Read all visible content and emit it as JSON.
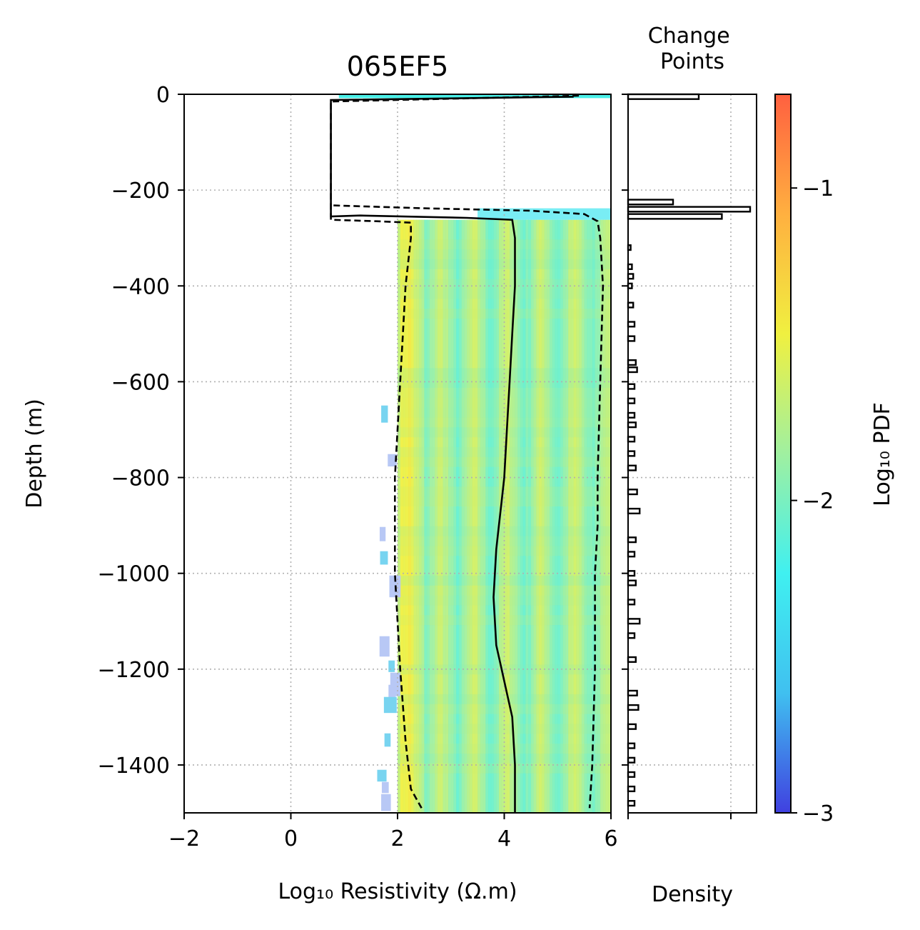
{
  "chart_data": [
    {
      "type": "heatmap",
      "title": "065EF5",
      "xlabel": "Log₁₀ Resistivity (Ω.m)",
      "ylabel": "Depth (m)",
      "xlim": [
        -2,
        6
      ],
      "ylim": [
        -1500,
        0
      ],
      "xticks": [
        "−2",
        "0",
        "2",
        "4",
        "6"
      ],
      "yticks": [
        "0",
        "−200",
        "−400",
        "−600",
        "−800",
        "−1000",
        "−1200",
        "−1400"
      ],
      "ytick_values": [
        0,
        -200,
        -400,
        -600,
        -800,
        -1000,
        -1200,
        -1400
      ],
      "xtick_values": [
        -2,
        0,
        2,
        4,
        6
      ],
      "grid": true,
      "series": [
        {
          "style": "solid",
          "x": [
            5.3,
            0.75,
            0.75,
            1.3,
            2.5,
            3.3,
            4.15,
            4.2,
            4.2,
            4.15,
            4.1,
            4.05,
            4.0,
            3.95,
            3.9,
            3.85,
            3.8,
            3.85,
            3.95,
            4.05,
            4.15,
            4.2,
            4.2
          ],
          "y": [
            -5,
            -12,
            -255,
            -253,
            -256,
            -258,
            -262,
            -300,
            -400,
            -500,
            -600,
            -700,
            -800,
            -850,
            -900,
            -950,
            -1050,
            -1150,
            -1200,
            -1250,
            -1300,
            -1400,
            -1500
          ]
        },
        {
          "style": "dashed",
          "x": [
            5.4,
            0.75,
            0.75,
            0.75,
            1.6,
            2.25,
            2.25,
            2.15,
            2.1,
            2.05,
            2.0,
            1.95,
            1.95,
            2.05,
            2.15,
            2.25,
            2.45
          ],
          "y": [
            -3,
            -15,
            -255,
            -262,
            -265,
            -268,
            -300,
            -400,
            -500,
            -600,
            -700,
            -800,
            -1000,
            -1200,
            -1350,
            -1450,
            -1490
          ]
        },
        {
          "style": "dashed",
          "x": [
            0.8,
            2.5,
            4.5,
            5.5,
            5.75,
            5.8,
            5.85,
            5.8,
            5.75,
            5.75,
            5.7,
            5.7,
            5.65,
            5.6
          ],
          "y": [
            -232,
            -238,
            -243,
            -250,
            -265,
            -300,
            -400,
            -600,
            -800,
            -900,
            -1000,
            -1200,
            -1400,
            -1490
          ]
        }
      ],
      "heatmap_band": {
        "x_range": [
          2.0,
          6.0
        ],
        "y_range": [
          -262,
          -1500
        ],
        "top_strip_y": [
          0,
          -8
        ],
        "transition_y": [
          -238,
          -262
        ]
      }
    },
    {
      "type": "bar",
      "orientation": "horizontal",
      "title": "Change Points",
      "xlabel": "Density",
      "ylim": [
        -1500,
        0
      ],
      "xlim": [
        0,
        100
      ],
      "bin_width": 10,
      "bins": [
        {
          "depth": -5,
          "value": 55
        },
        {
          "depth": -225,
          "value": 35
        },
        {
          "depth": -240,
          "value": 95
        },
        {
          "depth": -255,
          "value": 73
        },
        {
          "depth": -320,
          "value": 2
        },
        {
          "depth": -360,
          "value": 3
        },
        {
          "depth": -380,
          "value": 4
        },
        {
          "depth": -400,
          "value": 3
        },
        {
          "depth": -440,
          "value": 4
        },
        {
          "depth": -480,
          "value": 5
        },
        {
          "depth": -510,
          "value": 5
        },
        {
          "depth": -560,
          "value": 6
        },
        {
          "depth": -575,
          "value": 7
        },
        {
          "depth": -610,
          "value": 5
        },
        {
          "depth": -640,
          "value": 5
        },
        {
          "depth": -670,
          "value": 5
        },
        {
          "depth": -690,
          "value": 6
        },
        {
          "depth": -720,
          "value": 5
        },
        {
          "depth": -750,
          "value": 5
        },
        {
          "depth": -780,
          "value": 6
        },
        {
          "depth": -830,
          "value": 7
        },
        {
          "depth": -870,
          "value": 9
        },
        {
          "depth": -930,
          "value": 6
        },
        {
          "depth": -960,
          "value": 5
        },
        {
          "depth": -1000,
          "value": 5
        },
        {
          "depth": -1020,
          "value": 6
        },
        {
          "depth": -1060,
          "value": 5
        },
        {
          "depth": -1100,
          "value": 9
        },
        {
          "depth": -1130,
          "value": 5
        },
        {
          "depth": -1180,
          "value": 6
        },
        {
          "depth": -1250,
          "value": 7
        },
        {
          "depth": -1280,
          "value": 8
        },
        {
          "depth": -1320,
          "value": 6
        },
        {
          "depth": -1360,
          "value": 5
        },
        {
          "depth": -1390,
          "value": 5
        },
        {
          "depth": -1420,
          "value": 5
        },
        {
          "depth": -1450,
          "value": 5
        },
        {
          "depth": -1480,
          "value": 5
        }
      ]
    },
    {
      "type": "colorbar",
      "label": "Log₁₀ PDF",
      "range": [
        -3,
        -0.7
      ],
      "ticks": [
        "−1",
        "−2",
        "−3"
      ],
      "tick_values": [
        -1,
        -2,
        -3
      ],
      "colors": [
        "#4040e0",
        "#40c0f0",
        "#40f0f0",
        "#a0f0a0",
        "#f0f040",
        "#ffb040",
        "#ff6040"
      ]
    }
  ]
}
